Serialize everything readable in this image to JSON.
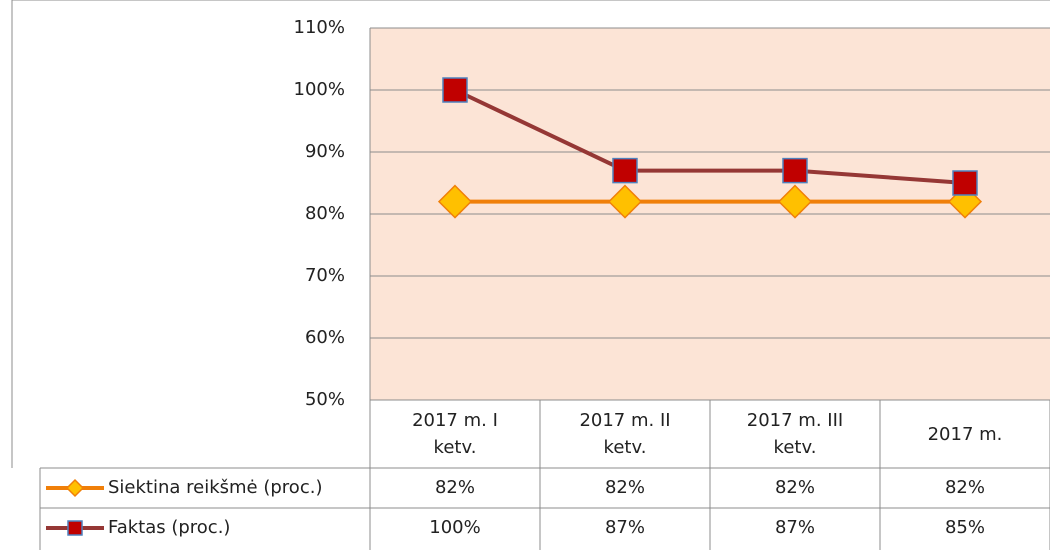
{
  "chart_data": {
    "type": "line",
    "categories": [
      "2017 m. I ketv.",
      "2017 m. II ketv.",
      "2017 m. III ketv.",
      "2017 m."
    ],
    "series": [
      {
        "name": "Siektina reikšmė (proc.)",
        "color": "#f07f09",
        "marker_color": "#ffc000",
        "marker": "diamond",
        "values": [
          82,
          82,
          82,
          82
        ],
        "value_labels": [
          "82%",
          "82%",
          "82%",
          "82%"
        ]
      },
      {
        "name": "Faktas (proc.)",
        "color": "#953735",
        "marker_color": "#c00000",
        "marker": "square",
        "values": [
          100,
          87,
          87,
          85
        ],
        "value_labels": [
          "100%",
          "87%",
          "87%",
          "85%"
        ]
      }
    ],
    "ylim": [
      50,
      110
    ],
    "yticks": [
      {
        "value": 50,
        "label": "50%"
      },
      {
        "value": 60,
        "label": "60%"
      },
      {
        "value": 70,
        "label": "70%"
      },
      {
        "value": 80,
        "label": "80%"
      },
      {
        "value": 90,
        "label": "90%"
      },
      {
        "value": 100,
        "label": "100%"
      },
      {
        "value": 110,
        "label": "110%"
      }
    ],
    "grid": true,
    "plot_background": "#fce4d6"
  }
}
